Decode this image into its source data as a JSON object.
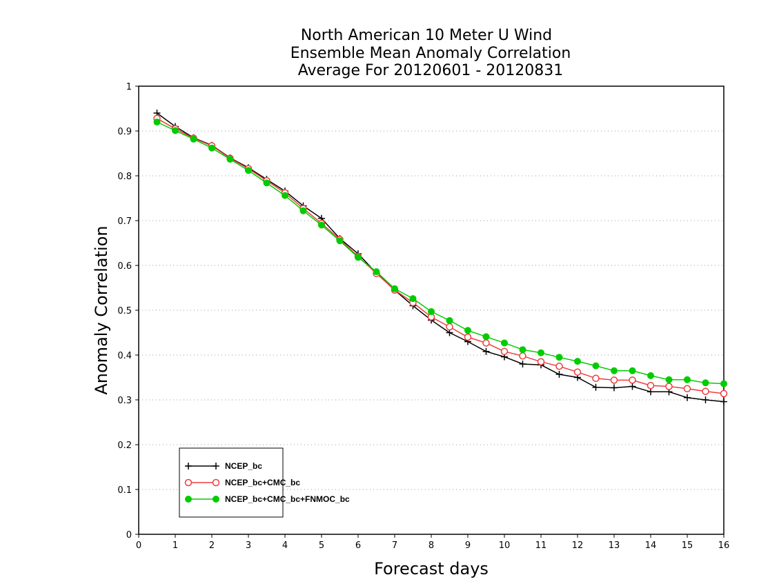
{
  "chart_data": {
    "type": "line",
    "title_lines": [
      "North American 10 Meter U Wind",
      "Ensemble Mean Anomaly Correlation",
      "Average For 20120601 - 20120831"
    ],
    "xlabel": "Forecast days",
    "ylabel": "Anomaly Correlation",
    "xlim": [
      0,
      16
    ],
    "ylim": [
      0,
      1
    ],
    "xticks": [
      "0",
      "1",
      "2",
      "3",
      "4",
      "5",
      "6",
      "7",
      "8",
      "9",
      "10",
      "11",
      "12",
      "13",
      "14",
      "15",
      "16"
    ],
    "yticks": [
      "0",
      "0.1",
      "0.2",
      "0.3",
      "0.4",
      "0.5",
      "0.6",
      "0.7",
      "0.8",
      "0.9",
      "1"
    ],
    "grid": true,
    "legend_position": "lower-left",
    "x": [
      0.5,
      1,
      1.5,
      2,
      2.5,
      3,
      3.5,
      4,
      4.5,
      5,
      5.5,
      6,
      6.5,
      7,
      7.5,
      8,
      8.5,
      9,
      9.5,
      10,
      10.5,
      11,
      11.5,
      12,
      12.5,
      13,
      13.5,
      14,
      14.5,
      15,
      15.5,
      16
    ],
    "series": [
      {
        "name": "NCEP_bc",
        "color": "#000000",
        "marker": "plus",
        "values": [
          0.94,
          0.91,
          0.885,
          0.868,
          0.84,
          0.818,
          0.792,
          0.766,
          0.733,
          0.705,
          0.66,
          0.626,
          0.583,
          0.545,
          0.51,
          0.478,
          0.45,
          0.43,
          0.408,
          0.396,
          0.38,
          0.378,
          0.357,
          0.35,
          0.328,
          0.327,
          0.33,
          0.318,
          0.318,
          0.305,
          0.3,
          0.296
        ]
      },
      {
        "name": "NCEP_bc+CMC_bc",
        "color": "#ee3b3b",
        "marker": "open-circle",
        "values": [
          0.928,
          0.905,
          0.884,
          0.867,
          0.839,
          0.816,
          0.789,
          0.762,
          0.727,
          0.694,
          0.658,
          0.62,
          0.582,
          0.545,
          0.517,
          0.485,
          0.463,
          0.44,
          0.427,
          0.408,
          0.398,
          0.385,
          0.375,
          0.362,
          0.348,
          0.344,
          0.344,
          0.332,
          0.33,
          0.325,
          0.319,
          0.314
        ]
      },
      {
        "name": "NCEP_bc+CMC_bc+FNMOC_bc",
        "color": "#00cc00",
        "marker": "filled-circle",
        "values": [
          0.92,
          0.901,
          0.882,
          0.862,
          0.837,
          0.812,
          0.784,
          0.756,
          0.722,
          0.69,
          0.655,
          0.618,
          0.586,
          0.548,
          0.526,
          0.497,
          0.477,
          0.455,
          0.441,
          0.427,
          0.412,
          0.405,
          0.395,
          0.386,
          0.376,
          0.365,
          0.365,
          0.354,
          0.345,
          0.345,
          0.338,
          0.336
        ]
      }
    ]
  }
}
